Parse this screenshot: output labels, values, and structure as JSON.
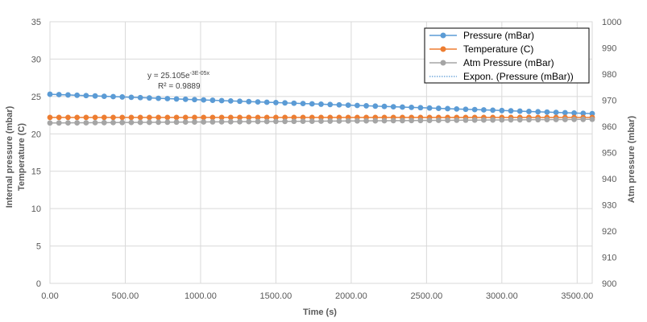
{
  "chart_data": {
    "type": "scatter",
    "xlabel": "Time (s)",
    "ylabel_left": [
      "Internal pressure (mbar)",
      "Temperature (C)"
    ],
    "ylabel_right": "Atm pressure (mbar)",
    "xlim": [
      0,
      3600
    ],
    "ylim_left": [
      0,
      35
    ],
    "ylim_right": [
      900,
      1000
    ],
    "x_ticks": [
      "0.00",
      "500.00",
      "1000.00",
      "1500.00",
      "2000.00",
      "2500.00",
      "3000.00",
      "3500.00"
    ],
    "y_left_ticks": [
      "0",
      "5",
      "10",
      "15",
      "20",
      "25",
      "30",
      "35"
    ],
    "y_right_ticks": [
      "900",
      "910",
      "920",
      "930",
      "940",
      "950",
      "960",
      "970",
      "980",
      "990",
      "1000"
    ],
    "grid": "horizontal and vertical",
    "legend_position": "top-right",
    "series": [
      {
        "name": "Pressure (mBar)",
        "axis": "left",
        "color": "#5B9BD5",
        "model": {
          "a": 25.3,
          "b": -3e-05
        },
        "x_start": 0,
        "x_end": 3600,
        "x_step": 60
      },
      {
        "name": "Temperature (C)",
        "axis": "left",
        "color": "#ED7D31",
        "constant": 22.2,
        "x_start": 0,
        "x_end": 3600,
        "x_step": 60
      },
      {
        "name": "Atm Pressure (mBar)",
        "axis": "right",
        "color": "#A5A5A5",
        "linear": {
          "start": 961.3,
          "end": 962.7
        },
        "x_start": 0,
        "x_end": 3600,
        "x_step": 60
      }
    ],
    "trendline": {
      "name": "Expon. (Pressure (mBar))",
      "color": "#5B9BD5",
      "equation": "y = 25.105e",
      "equation_exponent": "-3E-05x",
      "r_squared": "R² = 0.9889"
    }
  }
}
